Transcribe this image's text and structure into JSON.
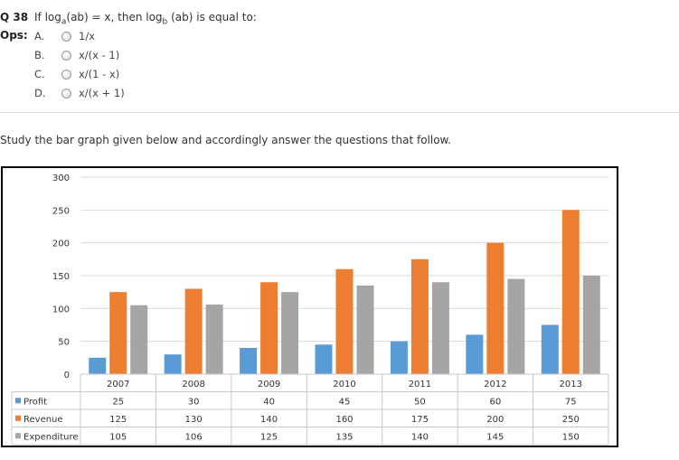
{
  "question": {
    "label": "Q 38",
    "prefix": "If log",
    "sub1": "a",
    "mid": "(ab) = x, then log",
    "sub2": "b",
    "suffix": " (ab) is equal to:"
  },
  "options_label": "Ops:",
  "options": [
    {
      "letter": "A.",
      "text": "1/x"
    },
    {
      "letter": "B.",
      "text": "x/(x - 1)"
    },
    {
      "letter": "C.",
      "text": "x/(1 - x)"
    },
    {
      "letter": "D.",
      "text": "x/(x + 1)"
    }
  ],
  "instruction": "Study the bar graph given below and accordingly answer the questions that follow.",
  "colors": {
    "profit": "#5b9bd5",
    "revenue": "#ed7d31",
    "expenditure": "#a5a5a5"
  },
  "chart_data": {
    "type": "bar",
    "title": "",
    "categories": [
      "2007",
      "2008",
      "2009",
      "2010",
      "2011",
      "2012",
      "2013"
    ],
    "series": [
      {
        "name": "Profit",
        "values": [
          25,
          30,
          40,
          45,
          50,
          60,
          75
        ]
      },
      {
        "name": "Revenue",
        "values": [
          125,
          130,
          140,
          160,
          175,
          200,
          250
        ]
      },
      {
        "name": "Expenditure",
        "values": [
          105,
          106,
          125,
          135,
          140,
          145,
          150
        ]
      }
    ],
    "yticks": [
      0,
      50,
      100,
      150,
      200,
      250,
      300
    ],
    "ylim": [
      0,
      300
    ],
    "grid": true,
    "legend": "data-table-left"
  }
}
